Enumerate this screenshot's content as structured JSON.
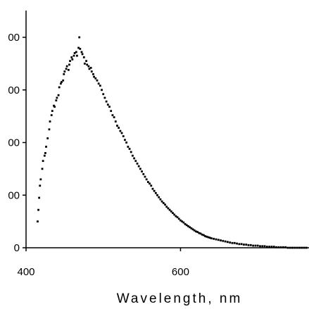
{
  "chart_data": {
    "type": "scatter",
    "title": "",
    "xlabel": "Wavelength, nm",
    "ylabel": "",
    "xlim": [
      400,
      765
    ],
    "ylim": [
      0,
      400
    ],
    "x_ticks": [
      {
        "value": 400,
        "label": "400"
      },
      {
        "value": 600,
        "label": "600"
      }
    ],
    "y_ticks": [
      {
        "value": 0,
        "label": "0"
      },
      {
        "value": 100,
        "label": "00"
      },
      {
        "value": 200,
        "label": "00"
      },
      {
        "value": 300,
        "label": "00"
      },
      {
        "value": 400,
        "label": "00"
      }
    ],
    "grid": false,
    "legend": "none",
    "marker_color": "#000000",
    "series": [
      {
        "points": [
          [
            415,
            50
          ],
          [
            416,
            72
          ],
          [
            417,
            95
          ],
          [
            418,
            118
          ],
          [
            419,
            130
          ],
          [
            421,
            150
          ],
          [
            422,
            165
          ],
          [
            424,
            175
          ],
          [
            425,
            180
          ],
          [
            426,
            192
          ],
          [
            428,
            208
          ],
          [
            430,
            225
          ],
          [
            431,
            240
          ],
          [
            433,
            252
          ],
          [
            434,
            260
          ],
          [
            436,
            270
          ],
          [
            437,
            268
          ],
          [
            439,
            280
          ],
          [
            440,
            285
          ],
          [
            442,
            290
          ],
          [
            443,
            305
          ],
          [
            445,
            312
          ],
          [
            446,
            315
          ],
          [
            448,
            318
          ],
          [
            449,
            330
          ],
          [
            450,
            335
          ],
          [
            452,
            340
          ],
          [
            453,
            345
          ],
          [
            455,
            338
          ],
          [
            456,
            348
          ],
          [
            457,
            355
          ],
          [
            459,
            362
          ],
          [
            460,
            358
          ],
          [
            462,
            365
          ],
          [
            463,
            370
          ],
          [
            465,
            372
          ],
          [
            466,
            365
          ],
          [
            468,
            380
          ],
          [
            469,
            400
          ],
          [
            470,
            378
          ],
          [
            472,
            372
          ],
          [
            473,
            368
          ],
          [
            475,
            362
          ],
          [
            476,
            350
          ],
          [
            478,
            355
          ],
          [
            479,
            348
          ],
          [
            481,
            345
          ],
          [
            482,
            340
          ],
          [
            484,
            342
          ],
          [
            485,
            335
          ],
          [
            487,
            330
          ],
          [
            488,
            325
          ],
          [
            490,
            322
          ],
          [
            492,
            318
          ],
          [
            494,
            312
          ],
          [
            496,
            308
          ],
          [
            498,
            300
          ],
          [
            500,
            292
          ],
          [
            502,
            285
          ],
          [
            504,
            278
          ],
          [
            506,
            272
          ],
          [
            508,
            268
          ],
          [
            510,
            260
          ],
          [
            512,
            252
          ],
          [
            514,
            248
          ],
          [
            516,
            240
          ],
          [
            518,
            232
          ],
          [
            520,
            228
          ],
          [
            522,
            222
          ],
          [
            524,
            218
          ],
          [
            526,
            212
          ],
          [
            528,
            205
          ],
          [
            530,
            200
          ],
          [
            532,
            192
          ],
          [
            534,
            188
          ],
          [
            536,
            182
          ],
          [
            538,
            175
          ],
          [
            540,
            170
          ],
          [
            542,
            165
          ],
          [
            544,
            160
          ],
          [
            546,
            155
          ],
          [
            548,
            150
          ],
          [
            550,
            145
          ],
          [
            552,
            140
          ],
          [
            554,
            135
          ],
          [
            556,
            130
          ],
          [
            558,
            125
          ],
          [
            560,
            122
          ],
          [
            562,
            118
          ],
          [
            564,
            112
          ],
          [
            566,
            108
          ],
          [
            568,
            104
          ],
          [
            570,
            100
          ],
          [
            572,
            96
          ],
          [
            574,
            92
          ],
          [
            576,
            88
          ],
          [
            578,
            85
          ],
          [
            580,
            82
          ],
          [
            582,
            78
          ],
          [
            584,
            75
          ],
          [
            586,
            72
          ],
          [
            588,
            69
          ],
          [
            590,
            66
          ],
          [
            592,
            63
          ],
          [
            594,
            60
          ],
          [
            596,
            58
          ],
          [
            598,
            55
          ],
          [
            600,
            52
          ],
          [
            602,
            50
          ],
          [
            604,
            48
          ],
          [
            606,
            45
          ],
          [
            608,
            43
          ],
          [
            610,
            41
          ],
          [
            612,
            39
          ],
          [
            614,
            37
          ],
          [
            616,
            35
          ],
          [
            618,
            33
          ],
          [
            620,
            31
          ],
          [
            622,
            30
          ],
          [
            624,
            28
          ],
          [
            626,
            27
          ],
          [
            628,
            25
          ],
          [
            630,
            24
          ],
          [
            632,
            22
          ],
          [
            634,
            21
          ],
          [
            636,
            20
          ],
          [
            638,
            19
          ],
          [
            640,
            18
          ],
          [
            643,
            17
          ],
          [
            646,
            16
          ],
          [
            649,
            15
          ],
          [
            652,
            14
          ],
          [
            655,
            13
          ],
          [
            658,
            12
          ],
          [
            661,
            11
          ],
          [
            664,
            10
          ],
          [
            667,
            9
          ],
          [
            670,
            9
          ],
          [
            673,
            8
          ],
          [
            676,
            7
          ],
          [
            679,
            7
          ],
          [
            682,
            6
          ],
          [
            685,
            6
          ],
          [
            688,
            5
          ],
          [
            691,
            5
          ],
          [
            694,
            4
          ],
          [
            697,
            4
          ],
          [
            700,
            4
          ],
          [
            703,
            3
          ],
          [
            706,
            3
          ],
          [
            709,
            3
          ],
          [
            712,
            2
          ],
          [
            715,
            2
          ],
          [
            718,
            2
          ],
          [
            721,
            2
          ],
          [
            724,
            1
          ],
          [
            727,
            1
          ],
          [
            730,
            1
          ],
          [
            733,
            1
          ],
          [
            736,
            1
          ],
          [
            739,
            0
          ],
          [
            742,
            0
          ],
          [
            745,
            0
          ],
          [
            748,
            0
          ],
          [
            751,
            0
          ],
          [
            754,
            0
          ],
          [
            757,
            0
          ],
          [
            760,
            0
          ],
          [
            763,
            0
          ]
        ]
      }
    ]
  }
}
